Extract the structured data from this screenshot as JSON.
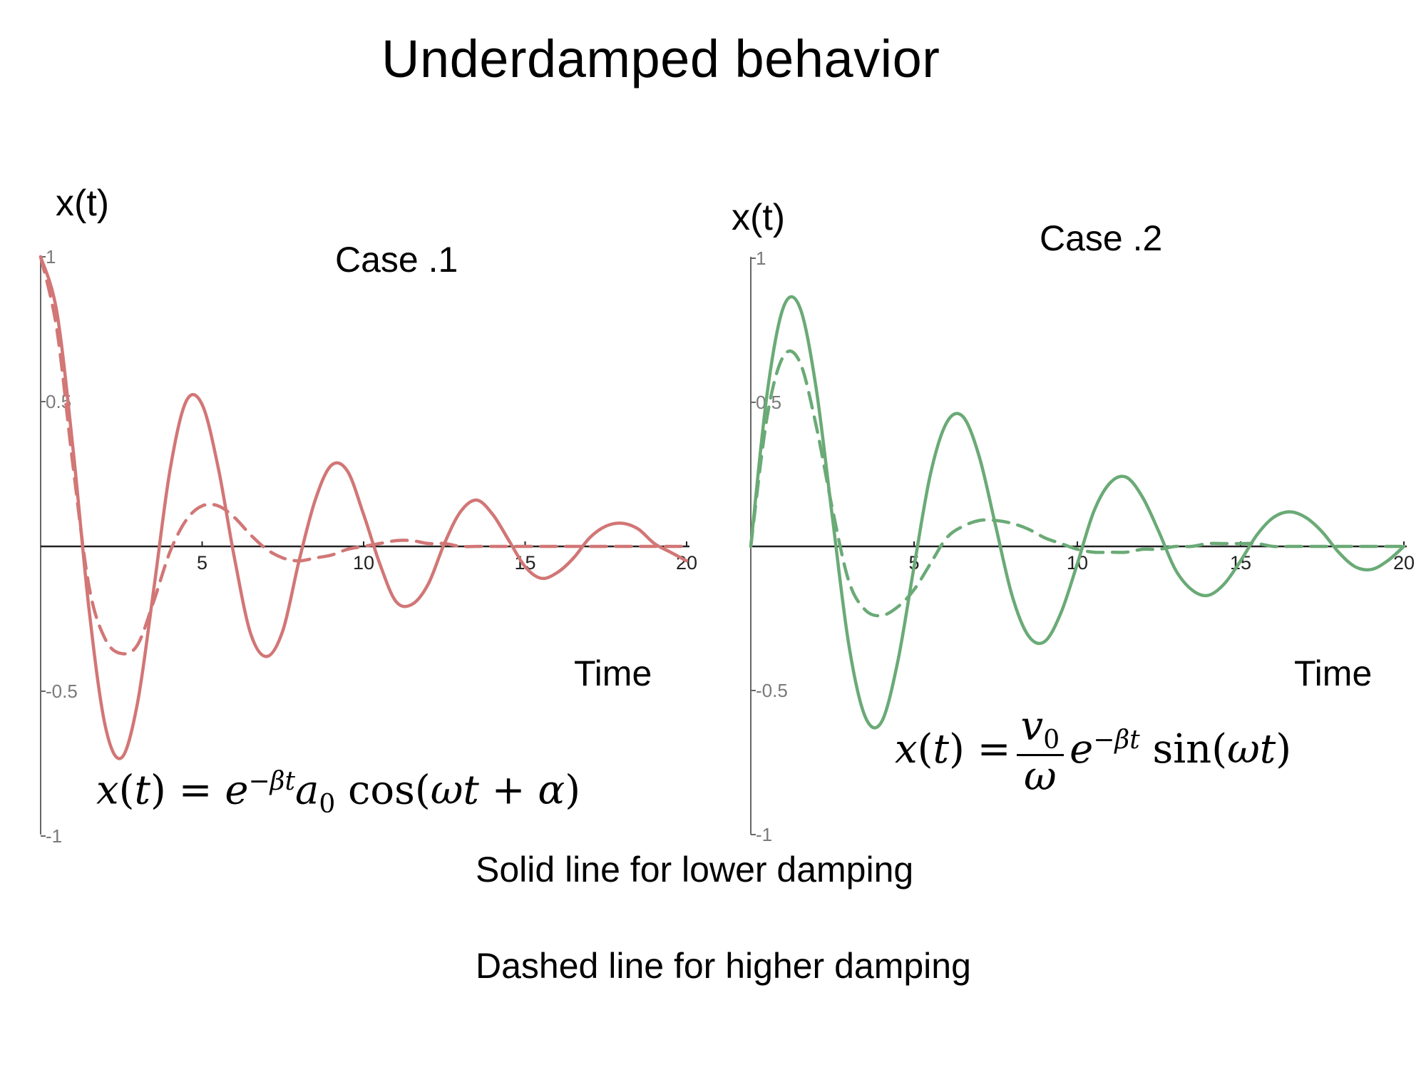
{
  "title": "Underdamped behavior",
  "notes": {
    "solid": "Solid line for lower damping",
    "dashed": "Dashed line for higher damping"
  },
  "chart_data": [
    {
      "type": "line",
      "title": "Case .1",
      "ylabel": "x(t)",
      "xlabel": "Time",
      "xlim": [
        0,
        20
      ],
      "ylim": [
        -1,
        1
      ],
      "x_ticks": [
        5,
        10,
        15,
        20
      ],
      "y_ticks": [
        1,
        0.5,
        -0.5,
        -1
      ],
      "y_tick_labels": [
        "1",
        "0.5",
        "-0.5",
        "-1"
      ],
      "formula": "x(t) = e^{-βt} a_0 cos(ωt + α)",
      "series": [
        {
          "style": "solid",
          "color": "#d27676",
          "x": [
            0,
            0.5,
            1,
            1.5,
            2,
            2.5,
            3,
            3.5,
            4,
            4.5,
            5,
            5.5,
            6,
            6.5,
            7,
            7.5,
            8,
            8.5,
            9,
            9.5,
            10,
            10.5,
            11,
            11.5,
            12,
            12.5,
            13,
            13.5,
            14,
            14.5,
            15,
            15.5,
            16,
            16.5,
            17,
            17.5,
            18,
            18.5,
            19,
            19.5,
            20
          ],
          "values": [
            1.0,
            0.81,
            0.34,
            -0.22,
            -0.62,
            -0.73,
            -0.54,
            -0.15,
            0.26,
            0.5,
            0.49,
            0.27,
            -0.04,
            -0.3,
            -0.38,
            -0.29,
            -0.05,
            0.16,
            0.28,
            0.26,
            0.11,
            -0.06,
            -0.19,
            -0.2,
            -0.13,
            0.01,
            0.12,
            0.16,
            0.11,
            0.02,
            -0.07,
            -0.11,
            -0.09,
            -0.04,
            0.03,
            0.07,
            0.08,
            0.06,
            0.01,
            -0.02,
            -0.05
          ]
        },
        {
          "style": "dashed",
          "color": "#d27676",
          "x": [
            0,
            0.5,
            1,
            1.5,
            2,
            2.5,
            3,
            3.5,
            4,
            4.5,
            5,
            5.5,
            6,
            6.5,
            7,
            7.5,
            8,
            8.5,
            9,
            9.5,
            10,
            10.5,
            11,
            11.5,
            12,
            12.5,
            13,
            13.5,
            14,
            14.5,
            15,
            15.5,
            16,
            16.5,
            17,
            17.5,
            18,
            18.5,
            19,
            19.5,
            20
          ],
          "values": [
            1.0,
            0.75,
            0.28,
            -0.14,
            -0.32,
            -0.37,
            -0.34,
            -0.19,
            -0.02,
            0.09,
            0.14,
            0.14,
            0.1,
            0.04,
            -0.01,
            -0.04,
            -0.05,
            -0.04,
            -0.03,
            -0.01,
            0.0,
            0.01,
            0.02,
            0.02,
            0.01,
            0.01,
            0.0,
            0.0,
            0.0,
            0.0,
            0.0,
            0.0,
            0.0,
            0.0,
            0.0,
            0.0,
            0.0,
            0.0,
            0.0,
            0.0,
            0.0
          ]
        }
      ]
    },
    {
      "type": "line",
      "title": "Case .2",
      "ylabel": "x(t)",
      "xlabel": "Time",
      "xlim": [
        0,
        20
      ],
      "ylim": [
        -1,
        1
      ],
      "x_ticks": [
        5,
        10,
        15,
        20
      ],
      "y_ticks": [
        1,
        0.5,
        -0.5,
        -1
      ],
      "y_tick_labels": [
        "1",
        "0.5",
        "-0.5",
        "-1"
      ],
      "formula": "x(t) = (v_0/ω) e^{-βt} sin(ωt)",
      "series": [
        {
          "style": "solid",
          "color": "#6aaa76",
          "x": [
            0,
            0.5,
            1,
            1.5,
            2,
            2.5,
            3,
            3.5,
            4,
            4.5,
            5,
            5.5,
            6,
            6.5,
            7,
            7.5,
            8,
            8.5,
            9,
            9.5,
            10,
            10.5,
            11,
            11.5,
            12,
            12.5,
            13,
            13.5,
            14,
            14.5,
            15,
            15.5,
            16,
            16.5,
            17,
            17.5,
            18,
            18.5,
            19,
            19.5,
            20
          ],
          "values": [
            0.0,
            0.53,
            0.83,
            0.83,
            0.55,
            0.1,
            -0.34,
            -0.59,
            -0.61,
            -0.4,
            -0.07,
            0.25,
            0.43,
            0.45,
            0.31,
            0.07,
            -0.17,
            -0.31,
            -0.33,
            -0.23,
            -0.06,
            0.12,
            0.22,
            0.24,
            0.17,
            0.05,
            -0.08,
            -0.15,
            -0.17,
            -0.13,
            -0.05,
            0.04,
            0.1,
            0.12,
            0.1,
            0.05,
            -0.02,
            -0.07,
            -0.08,
            -0.05,
            0.0
          ]
        },
        {
          "style": "dashed",
          "color": "#6aaa76",
          "x": [
            0,
            0.5,
            1,
            1.5,
            2,
            2.5,
            3,
            3.5,
            4,
            4.5,
            5,
            5.5,
            6,
            6.5,
            7,
            7.5,
            8,
            8.5,
            9,
            9.5,
            10,
            10.5,
            11,
            11.5,
            12,
            12.5,
            13,
            13.5,
            14,
            14.5,
            15,
            15.5,
            16,
            16.5,
            17,
            17.5,
            18,
            18.5,
            19,
            19.5,
            20
          ],
          "values": [
            0.0,
            0.45,
            0.66,
            0.64,
            0.42,
            0.13,
            -0.12,
            -0.22,
            -0.24,
            -0.21,
            -0.15,
            -0.06,
            0.03,
            0.07,
            0.09,
            0.09,
            0.08,
            0.06,
            0.03,
            0.01,
            -0.01,
            -0.02,
            -0.02,
            -0.02,
            -0.01,
            -0.01,
            0.0,
            0.0,
            0.01,
            0.01,
            0.01,
            0.01,
            0.0,
            0.0,
            0.0,
            0.0,
            0.0,
            0.0,
            0.0,
            0.0,
            0.0
          ]
        }
      ]
    }
  ]
}
